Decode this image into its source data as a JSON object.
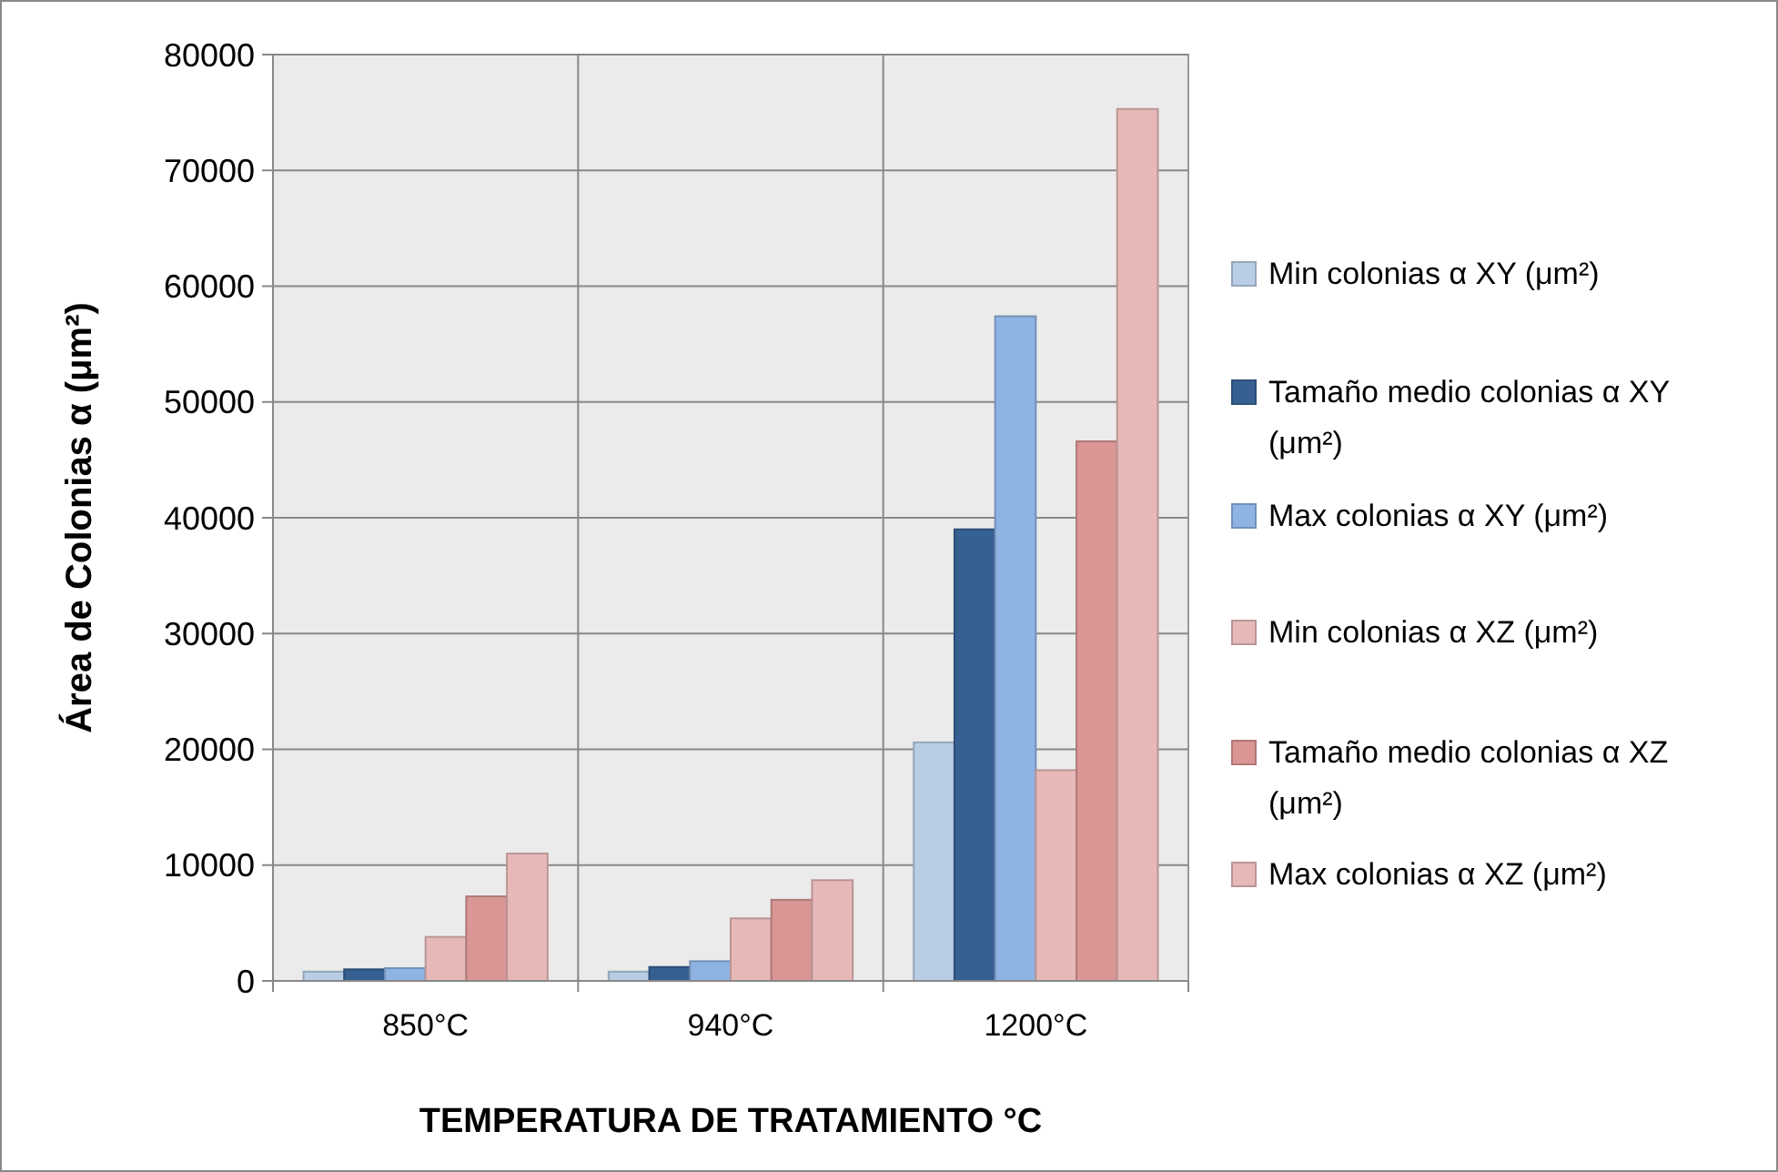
{
  "chart_data": {
    "type": "bar",
    "xlabel": "TEMPERATURA DE TRATAMIENTO °C",
    "ylabel": "Área de Colonias α (μm²)",
    "categories": [
      "850°C",
      "940°C",
      "1200°C"
    ],
    "series": [
      {
        "name": "Min colonias α XY (μm²)",
        "color": "#b9cde5",
        "values": [
          800,
          800,
          20600
        ]
      },
      {
        "name": "Tamaño medio colonias α XY (μm²)",
        "color": "#376092",
        "values": [
          1000,
          1200,
          39000
        ]
      },
      {
        "name": "Max colonias α XY (μm²)",
        "color": "#8eb4e3",
        "values": [
          1100,
          1700,
          57400
        ]
      },
      {
        "name": "Min colonias α XZ (μm²)",
        "color": "#e6b9b8",
        "values": [
          3800,
          5400,
          18200
        ]
      },
      {
        "name": "Tamaño medio colonias α XZ (μm²)",
        "color": "#d99694",
        "values": [
          7300,
          7000,
          46600
        ]
      },
      {
        "name": "Max colonias α XZ (μm²)",
        "color": "#e6b9b8",
        "values": [
          11000,
          8700,
          75300
        ]
      }
    ],
    "ylim": [
      0,
      80000
    ],
    "yticks": [
      0,
      10000,
      20000,
      30000,
      40000,
      50000,
      60000,
      70000,
      80000
    ],
    "grid": true,
    "legend": "right"
  }
}
